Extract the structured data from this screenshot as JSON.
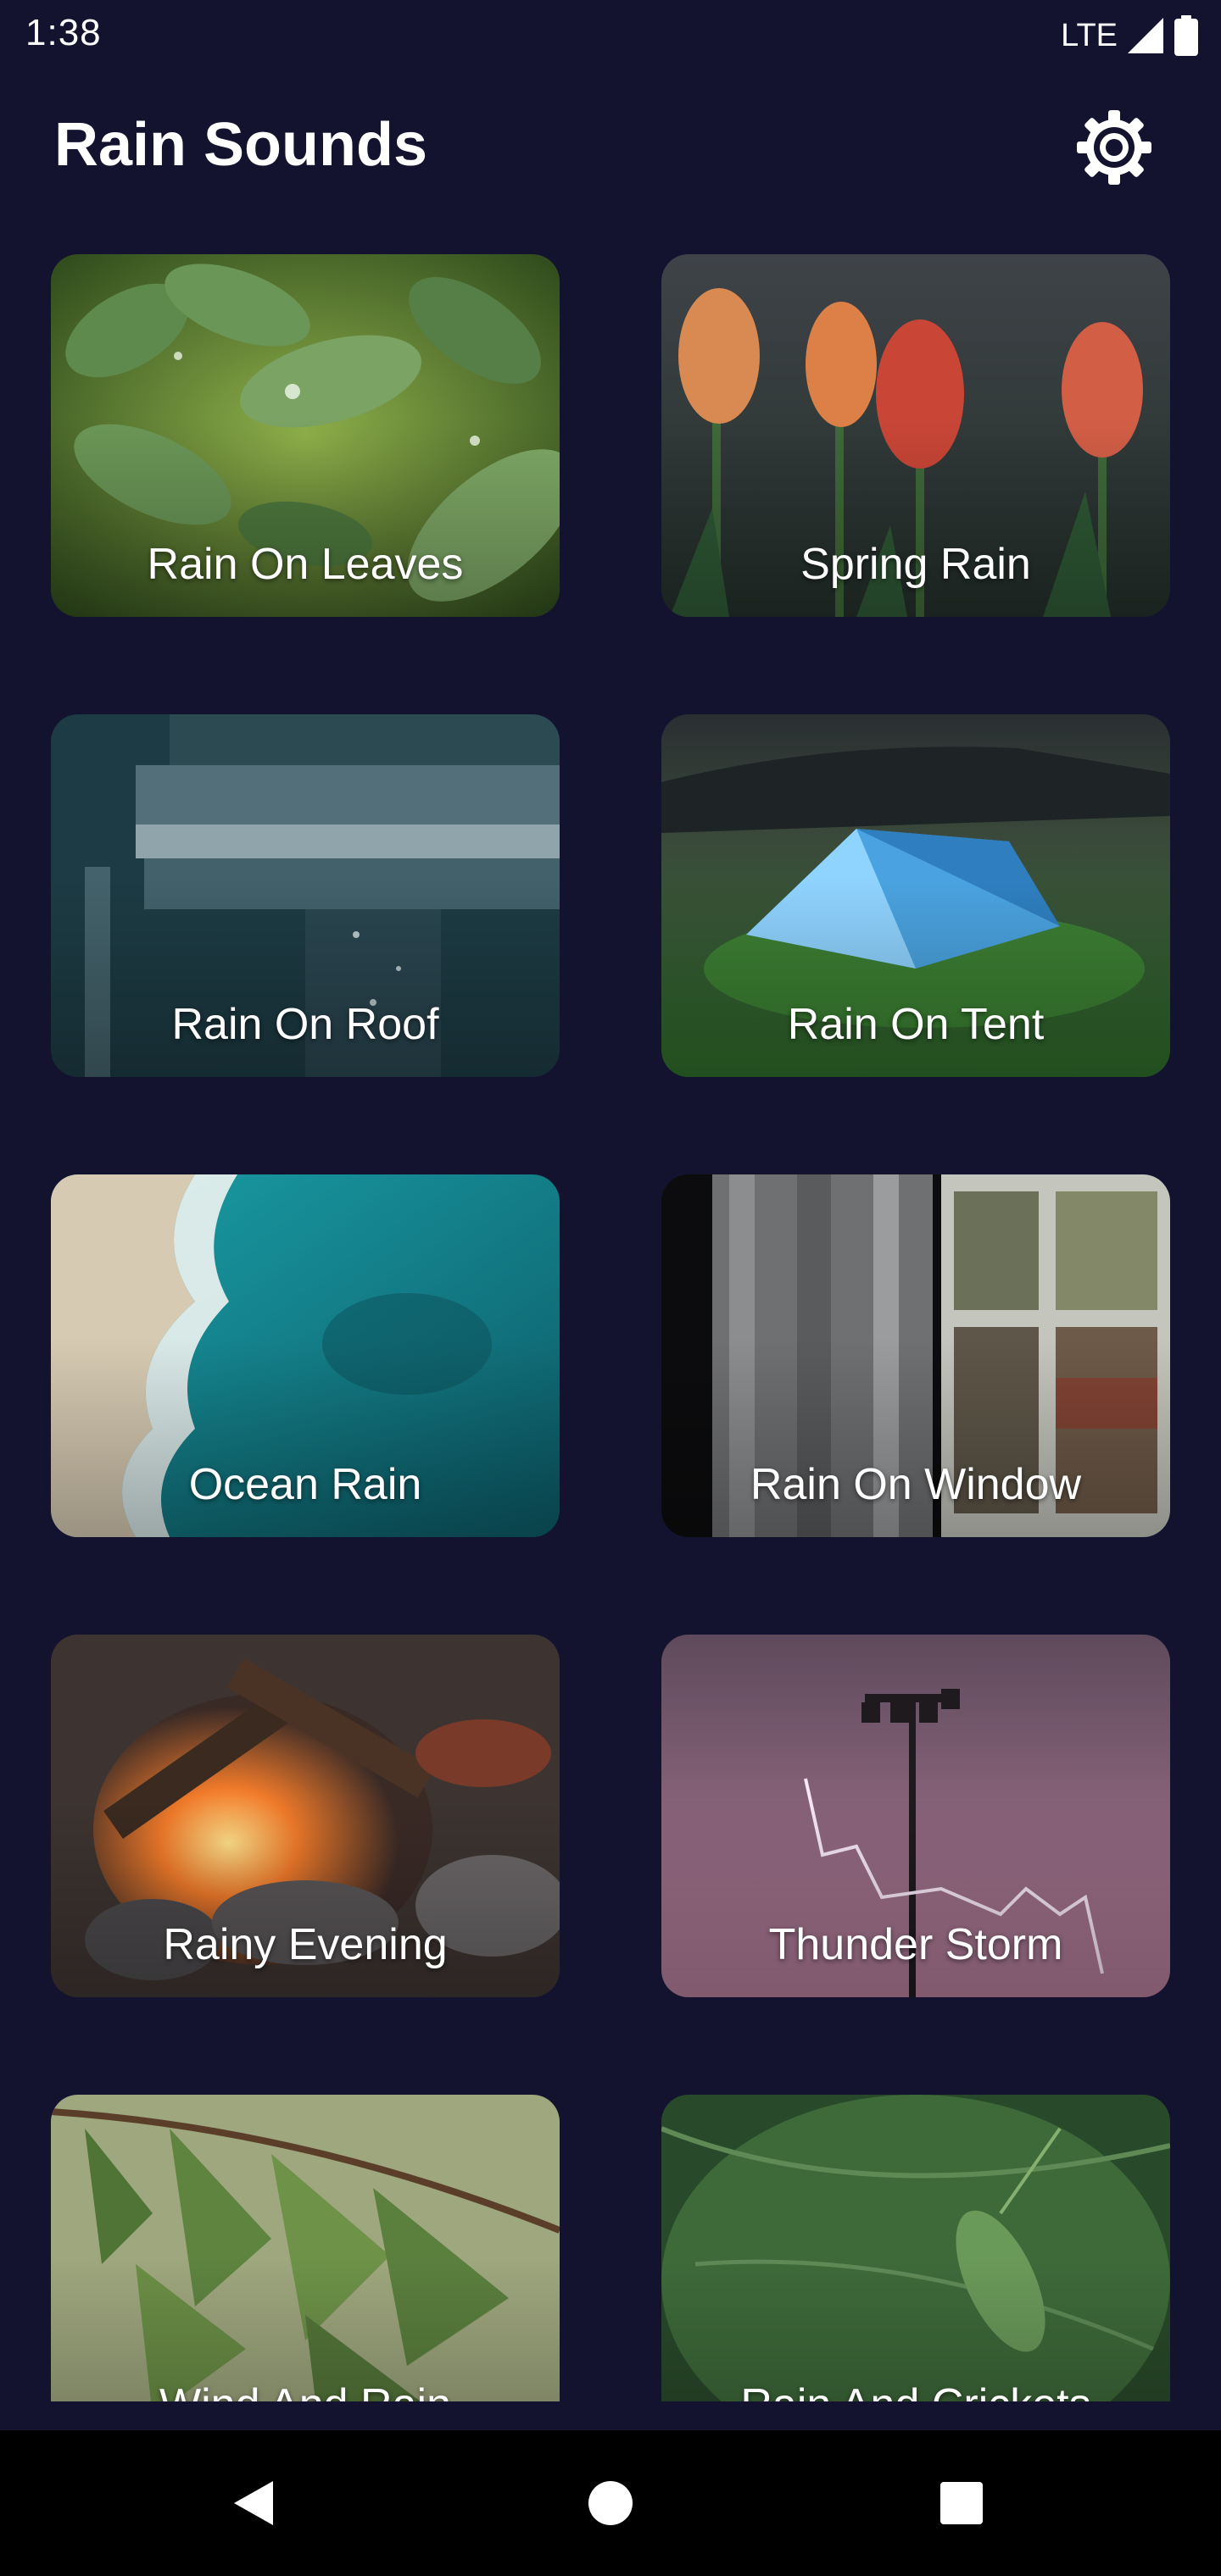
{
  "status_bar": {
    "time": "1:38",
    "network": "LTE"
  },
  "app_bar": {
    "title": "Rain Sounds",
    "settings_icon": "settings-gear-icon"
  },
  "sounds": [
    {
      "label": "Rain On Leaves",
      "scene": "leaves"
    },
    {
      "label": "Spring Rain",
      "scene": "tulips"
    },
    {
      "label": "Rain On Roof",
      "scene": "roof"
    },
    {
      "label": "Rain On Tent",
      "scene": "tent"
    },
    {
      "label": "Ocean Rain",
      "scene": "ocean"
    },
    {
      "label": "Rain On Window",
      "scene": "window"
    },
    {
      "label": "Rainy Evening",
      "scene": "fire"
    },
    {
      "label": "Thunder Storm",
      "scene": "storm"
    },
    {
      "label": "Wind And Rain",
      "scene": "pine"
    },
    {
      "label": "Rain And Crickets",
      "scene": "cricket"
    }
  ],
  "nav_bar": {
    "back_icon": "back-triangle-icon",
    "home_icon": "home-circle-icon",
    "recents_icon": "recents-square-icon"
  },
  "colors": {
    "background": "#13122f",
    "nav_background": "#000000",
    "text": "#ffffff"
  }
}
